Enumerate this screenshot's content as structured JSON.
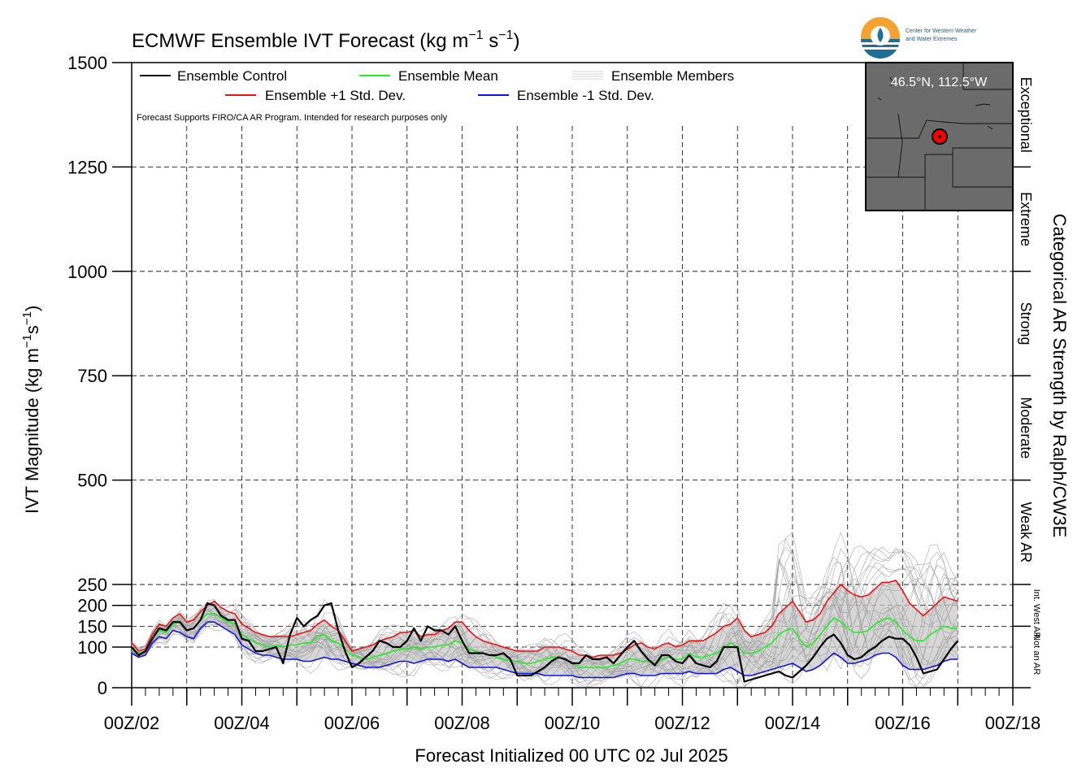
{
  "chart_data": {
    "type": "line",
    "title": "ECMWF Ensemble IVT Forecast (kg m",
    "title_unit_exp1": "−1",
    "title_unit_mid": " s",
    "title_unit_exp2": "−1",
    "title_unit_end": ")",
    "ylabel": "IVT Magnitude (kg m",
    "ylabel_exp1": "−1",
    "ylabel_mid": "s",
    "ylabel_exp2": "−1",
    "ylabel_end": ")",
    "xlabel": "Forecast Initialized 00 UTC 02 Jul 2025",
    "right_axis_label": "Categorical AR Strength by Ralph/CW3E",
    "ylim": [
      0,
      1500
    ],
    "xlim": [
      0,
      384
    ],
    "y_ticks": [
      0,
      100,
      150,
      200,
      250,
      500,
      750,
      1000,
      1250,
      1500
    ],
    "x_ticks": [
      {
        "x": 0,
        "label": "00Z/02"
      },
      {
        "x": 48,
        "label": "00Z/04"
      },
      {
        "x": 96,
        "label": "00Z/06"
      },
      {
        "x": 144,
        "label": "00Z/08"
      },
      {
        "x": 192,
        "label": "00Z/10"
      },
      {
        "x": 240,
        "label": "00Z/12"
      },
      {
        "x": 288,
        "label": "00Z/14"
      },
      {
        "x": 336,
        "label": "00Z/16"
      },
      {
        "x": 384,
        "label": "00Z/18"
      }
    ],
    "categories": [
      {
        "label": "Exceptional",
        "min": 1250,
        "max": 1500
      },
      {
        "label": "Extreme",
        "min": 1000,
        "max": 1250
      },
      {
        "label": "Strong",
        "min": 750,
        "max": 1000
      },
      {
        "label": "Moderate",
        "min": 500,
        "max": 750
      },
      {
        "label": "Weak AR",
        "min": 250,
        "max": 500
      },
      {
        "label": "Int. West AR",
        "min": 150,
        "max": 250
      },
      {
        "label": "Not an AR",
        "min": 0,
        "max": 150
      }
    ],
    "legend": {
      "control": "Ensemble Control",
      "mean": "Ensemble Mean",
      "members": "Ensemble Members",
      "plus_std": "Ensemble +1 Std. Dev.",
      "minus_std": "Ensemble -1 Std. Dev.",
      "note": "Forecast Supports FIRO/CA AR Program. Intended for research purposes only"
    },
    "location_label": "46.5°N, 112.5°W",
    "series": [
      {
        "name": "Ensemble Control",
        "color": "#000000",
        "x": [
          0,
          3,
          6,
          9,
          12,
          15,
          18,
          21,
          24,
          27,
          30,
          33,
          36,
          39,
          42,
          45,
          48,
          51,
          54,
          57,
          60,
          63,
          66,
          69,
          72,
          75,
          78,
          81,
          84,
          87,
          90,
          93,
          96,
          99,
          102,
          105,
          108,
          111,
          114,
          117,
          120,
          123,
          126,
          129,
          132,
          135,
          138,
          141,
          144,
          147,
          150,
          153,
          156,
          159,
          162,
          165,
          168,
          171,
          174,
          177,
          180,
          183,
          186,
          189,
          192,
          195,
          198,
          201,
          204,
          207,
          210,
          213,
          216,
          219,
          222,
          225,
          228,
          231,
          234,
          237,
          240,
          243,
          246,
          249,
          252,
          255,
          258,
          261,
          264,
          267,
          270,
          273,
          276,
          279,
          282,
          285,
          288,
          291,
          294,
          297,
          300,
          303,
          306,
          309,
          312,
          315,
          318,
          321,
          324,
          327,
          330,
          333,
          336,
          339,
          342,
          345,
          348,
          351,
          354,
          357,
          360
        ],
        "values": [
          100,
          80,
          90,
          120,
          145,
          140,
          160,
          160,
          140,
          145,
          165,
          205,
          200,
          175,
          165,
          165,
          120,
          115,
          90,
          90,
          95,
          100,
          60,
          130,
          170,
          150,
          165,
          175,
          200,
          205,
          140,
          90,
          50,
          60,
          75,
          90,
          115,
          110,
          100,
          100,
          115,
          145,
          115,
          150,
          140,
          140,
          130,
          150,
          115,
          85,
          85,
          85,
          80,
          80,
          85,
          70,
          30,
          30,
          30,
          40,
          50,
          65,
          75,
          70,
          60,
          60,
          80,
          70,
          70,
          75,
          60,
          80,
          100,
          115,
          90,
          70,
          55,
          80,
          80,
          65,
          60,
          80,
          60,
          55,
          50,
          65,
          100,
          100,
          100,
          15,
          20,
          25,
          30,
          35,
          40,
          30,
          25,
          40,
          55,
          75,
          100,
          120,
          130,
          110,
          80,
          70,
          75,
          90,
          100,
          115,
          125,
          120,
          120,
          105,
          75,
          35,
          40,
          45,
          70,
          95,
          115
        ]
      },
      {
        "name": "Ensemble Mean",
        "color": "#22ee22",
        "x": [
          0,
          3,
          6,
          9,
          12,
          15,
          18,
          21,
          24,
          27,
          30,
          33,
          36,
          39,
          42,
          45,
          48,
          51,
          54,
          57,
          60,
          63,
          66,
          69,
          72,
          75,
          78,
          81,
          84,
          87,
          90,
          93,
          96,
          99,
          102,
          105,
          108,
          111,
          114,
          117,
          120,
          123,
          126,
          129,
          132,
          135,
          138,
          141,
          144,
          147,
          150,
          153,
          156,
          159,
          162,
          165,
          168,
          171,
          174,
          177,
          180,
          183,
          186,
          189,
          192,
          195,
          198,
          201,
          204,
          207,
          210,
          213,
          216,
          219,
          222,
          225,
          228,
          231,
          234,
          237,
          240,
          243,
          246,
          249,
          252,
          255,
          258,
          261,
          264,
          267,
          270,
          273,
          276,
          279,
          282,
          285,
          288,
          291,
          294,
          297,
          300,
          303,
          306,
          309,
          312,
          315,
          318,
          321,
          324,
          327,
          330,
          333,
          336,
          339,
          342,
          345,
          348,
          351,
          354,
          357,
          360
        ],
        "values": [
          95,
          85,
          90,
          120,
          140,
          135,
          155,
          160,
          140,
          145,
          165,
          180,
          180,
          170,
          160,
          155,
          130,
          120,
          110,
          105,
          100,
          105,
          100,
          105,
          105,
          110,
          110,
          125,
          130,
          115,
          110,
          95,
          80,
          75,
          70,
          75,
          80,
          85,
          90,
          95,
          95,
          100,
          95,
          100,
          100,
          105,
          105,
          115,
          110,
          95,
          90,
          85,
          80,
          75,
          70,
          65,
          65,
          60,
          60,
          65,
          70,
          75,
          75,
          70,
          60,
          50,
          50,
          50,
          50,
          50,
          55,
          60,
          70,
          70,
          65,
          65,
          60,
          70,
          75,
          70,
          70,
          85,
          75,
          75,
          80,
          85,
          100,
          110,
          100,
          85,
          85,
          90,
          100,
          110,
          130,
          140,
          145,
          120,
          100,
          110,
          130,
          150,
          170,
          160,
          145,
          135,
          135,
          140,
          155,
          165,
          170,
          160,
          140,
          125,
          115,
          115,
          130,
          140,
          150,
          145,
          145
        ]
      },
      {
        "name": "Ensemble +1 Std. Dev.",
        "color": "#ee1111",
        "x": [
          0,
          3,
          6,
          9,
          12,
          15,
          18,
          21,
          24,
          27,
          30,
          33,
          36,
          39,
          42,
          45,
          48,
          51,
          54,
          57,
          60,
          63,
          66,
          69,
          72,
          75,
          78,
          81,
          84,
          87,
          90,
          93,
          96,
          99,
          102,
          105,
          108,
          111,
          114,
          117,
          120,
          123,
          126,
          129,
          132,
          135,
          138,
          141,
          144,
          147,
          150,
          153,
          156,
          159,
          162,
          165,
          168,
          171,
          174,
          177,
          180,
          183,
          186,
          189,
          192,
          195,
          198,
          201,
          204,
          207,
          210,
          213,
          216,
          219,
          222,
          225,
          228,
          231,
          234,
          237,
          240,
          243,
          246,
          249,
          252,
          255,
          258,
          261,
          264,
          267,
          270,
          273,
          276,
          279,
          282,
          285,
          288,
          291,
          294,
          297,
          300,
          303,
          306,
          309,
          312,
          315,
          318,
          321,
          324,
          327,
          330,
          333,
          336,
          339,
          342,
          345,
          348,
          351,
          354,
          357,
          360
        ],
        "values": [
          110,
          90,
          95,
          130,
          155,
          150,
          170,
          180,
          160,
          165,
          185,
          200,
          210,
          195,
          185,
          180,
          155,
          145,
          135,
          130,
          125,
          125,
          125,
          125,
          130,
          135,
          140,
          155,
          165,
          150,
          140,
          115,
          90,
          95,
          100,
          105,
          115,
          120,
          125,
          135,
          135,
          140,
          125,
          130,
          130,
          140,
          145,
          160,
          160,
          140,
          125,
          115,
          110,
          105,
          100,
          95,
          90,
          90,
          90,
          90,
          100,
          100,
          100,
          95,
          90,
          80,
          80,
          75,
          80,
          80,
          80,
          85,
          95,
          105,
          110,
          100,
          95,
          105,
          110,
          100,
          105,
          115,
          115,
          115,
          125,
          135,
          150,
          155,
          170,
          140,
          125,
          130,
          135,
          150,
          180,
          195,
          210,
          185,
          160,
          165,
          180,
          210,
          230,
          250,
          235,
          225,
          220,
          225,
          240,
          255,
          255,
          260,
          235,
          205,
          190,
          175,
          190,
          205,
          220,
          215,
          210
        ]
      },
      {
        "name": "Ensemble -1 Std. Dev.",
        "color": "#1111ee",
        "x": [
          0,
          3,
          6,
          9,
          12,
          15,
          18,
          21,
          24,
          27,
          30,
          33,
          36,
          39,
          42,
          45,
          48,
          51,
          54,
          57,
          60,
          63,
          66,
          69,
          72,
          75,
          78,
          81,
          84,
          87,
          90,
          93,
          96,
          99,
          102,
          105,
          108,
          111,
          114,
          117,
          120,
          123,
          126,
          129,
          132,
          135,
          138,
          141,
          144,
          147,
          150,
          153,
          156,
          159,
          162,
          165,
          168,
          171,
          174,
          177,
          180,
          183,
          186,
          189,
          192,
          195,
          198,
          201,
          204,
          207,
          210,
          213,
          216,
          219,
          222,
          225,
          228,
          231,
          234,
          237,
          240,
          243,
          246,
          249,
          252,
          255,
          258,
          261,
          264,
          267,
          270,
          273,
          276,
          279,
          282,
          285,
          288,
          291,
          294,
          297,
          300,
          303,
          306,
          309,
          312,
          315,
          318,
          321,
          324,
          327,
          330,
          333,
          336,
          339,
          342,
          345,
          348,
          351,
          354,
          357,
          360
        ],
        "values": [
          85,
          75,
          80,
          110,
          125,
          120,
          140,
          135,
          125,
          120,
          145,
          160,
          160,
          150,
          140,
          130,
          105,
          95,
          85,
          80,
          80,
          75,
          70,
          70,
          70,
          65,
          65,
          70,
          75,
          70,
          70,
          65,
          60,
          55,
          50,
          50,
          50,
          55,
          60,
          65,
          65,
          60,
          65,
          70,
          70,
          70,
          65,
          70,
          60,
          50,
          50,
          50,
          50,
          50,
          45,
          40,
          35,
          35,
          35,
          35,
          30,
          30,
          30,
          30,
          30,
          25,
          25,
          25,
          25,
          25,
          25,
          30,
          35,
          35,
          30,
          30,
          30,
          35,
          35,
          35,
          35,
          40,
          35,
          35,
          35,
          35,
          45,
          50,
          40,
          30,
          30,
          35,
          40,
          45,
          50,
          55,
          60,
          50,
          40,
          45,
          55,
          70,
          85,
          75,
          60,
          60,
          65,
          70,
          80,
          85,
          85,
          75,
          55,
          45,
          45,
          45,
          50,
          55,
          65,
          70,
          70
        ]
      }
    ]
  }
}
